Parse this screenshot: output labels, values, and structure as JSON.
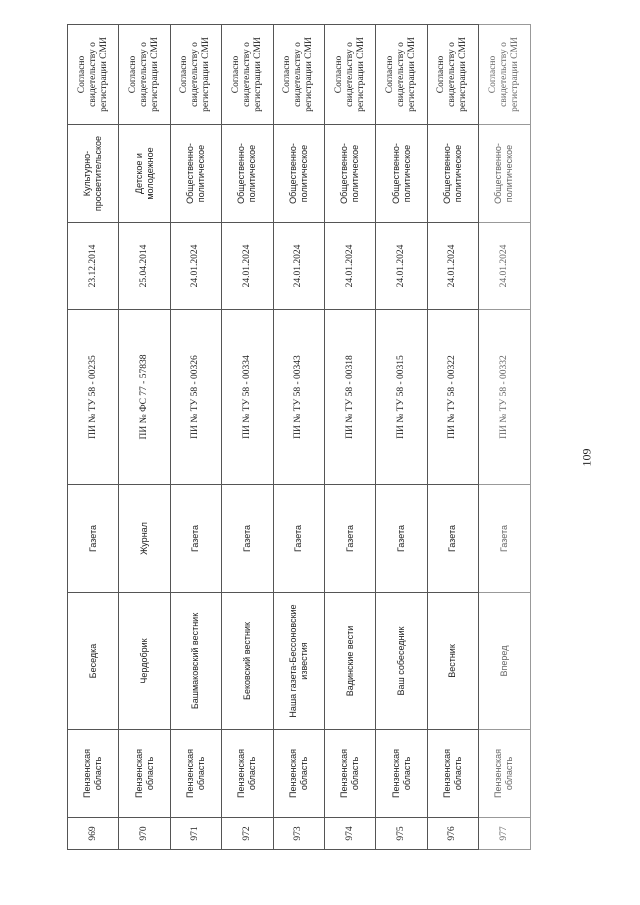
{
  "page_number": "109",
  "rows": [
    {
      "num": "969",
      "region": "Пензенская область",
      "name": "Беседка",
      "type": "Газета",
      "reg": "ПИ № ТУ 58 - 00235",
      "date": "23.12.2014",
      "theme": "Культурно-просветительское",
      "note": "Согласно свидетельству о регистрации СМИ"
    },
    {
      "num": "970",
      "region": "Пензенская область",
      "name": "Чердобрик",
      "type": "Журнал",
      "reg": "ПИ № ФС 77 - 57838",
      "date": "25.04.2014",
      "theme": "Детское и молодежное",
      "note": "Согласно свидетельству о регистрации СМИ"
    },
    {
      "num": "971",
      "region": "Пензенская область",
      "name": "Башмаковский вестник",
      "type": "Газета",
      "reg": "ПИ № ТУ 58 - 00326",
      "date": "24.01.2024",
      "theme": "Общественно-политическое",
      "note": "Согласно свидетельству о регистрации СМИ"
    },
    {
      "num": "972",
      "region": "Пензенская область",
      "name": "Бековский вестник",
      "type": "Газета",
      "reg": "ПИ № ТУ 58 - 00334",
      "date": "24.01.2024",
      "theme": "Общественно-политическое",
      "note": "Согласно свидетельству о регистрации СМИ"
    },
    {
      "num": "973",
      "region": "Пензенская область",
      "name": "Наша газета-Бессоновские известия",
      "type": "Газета",
      "reg": "ПИ № ТУ 58 - 00343",
      "date": "24.01.2024",
      "theme": "Общественно-политическое",
      "note": "Согласно свидетельству о регистрации СМИ"
    },
    {
      "num": "974",
      "region": "Пензенская область",
      "name": "Вадинские вести",
      "type": "Газета",
      "reg": "ПИ № ТУ 58 - 00318",
      "date": "24.01.2024",
      "theme": "Общественно-политическое",
      "note": "Согласно свидетельству о регистрации СМИ"
    },
    {
      "num": "975",
      "region": "Пензенская область",
      "name": "Ваш собеседник",
      "type": "Газета",
      "reg": "ПИ № ТУ 58 - 00315",
      "date": "24.01.2024",
      "theme": "Общественно-политическое",
      "note": "Согласно свидетельству о регистрации СМИ"
    },
    {
      "num": "976",
      "region": "Пензенская область",
      "name": "Вестник",
      "type": "Газета",
      "reg": "ПИ № ТУ 58 - 00322",
      "date": "24.01.2024",
      "theme": "Общественно-политическое",
      "note": "Согласно свидетельству о регистрации СМИ"
    },
    {
      "num": "977",
      "region": "Пензенская область",
      "name": "Вперед",
      "type": "Газета",
      "reg": "ПИ № ТУ 58 - 00332",
      "date": "24.01.2024",
      "theme": "Общественно-политическое",
      "note": "Согласно свидетельству о регистрации СМИ"
    }
  ]
}
